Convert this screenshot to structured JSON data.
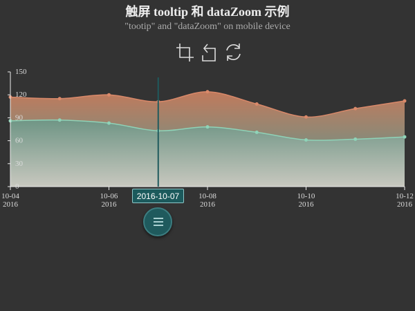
{
  "chart_data": {
    "type": "area",
    "title": "触屏 tooltip 和 dataZoom 示例",
    "subtitle": "\"tootip\" and \"dataZoom\" on mobile device",
    "x_ticks": [
      {
        "date": "2016-10-04",
        "label": "10-04",
        "year": "2016"
      },
      {
        "date": "2016-10-06",
        "label": "10-06",
        "year": "2016"
      },
      {
        "date": "2016-10-08",
        "label": "10-08",
        "year": "2016"
      },
      {
        "date": "2016-10-10",
        "label": "10-10",
        "year": "2016"
      },
      {
        "date": "2016-10-12",
        "label": "10-12",
        "year": "2016"
      }
    ],
    "xlim": [
      "2016-10-04",
      "2016-10-12"
    ],
    "ylim": [
      0,
      150
    ],
    "y_ticks": [
      0,
      30,
      60,
      90,
      120,
      150
    ],
    "stacked": true,
    "series": [
      {
        "color": "#8fd3b8",
        "data": [
          [
            "2016-10-04",
            86
          ],
          [
            "2016-10-05",
            87
          ],
          [
            "2016-10-06",
            83
          ],
          [
            "2016-10-07",
            73
          ],
          [
            "2016-10-08",
            78
          ],
          [
            "2016-10-09",
            71
          ],
          [
            "2016-10-10",
            61
          ],
          [
            "2016-10-11",
            62
          ],
          [
            "2016-10-12",
            65
          ]
        ]
      },
      {
        "color": "#d9896a",
        "data": [
          [
            "2016-10-04",
            31
          ],
          [
            "2016-10-05",
            28
          ],
          [
            "2016-10-06",
            37
          ],
          [
            "2016-10-07",
            38
          ],
          [
            "2016-10-08",
            46
          ],
          [
            "2016-10-09",
            37
          ],
          [
            "2016-10-10",
            30
          ],
          [
            "2016-10-11",
            40
          ],
          [
            "2016-10-12",
            47
          ]
        ]
      }
    ],
    "tooltip": {
      "date": "2016-10-07",
      "label": "2016-10-07"
    }
  },
  "colors": {
    "background": "#333333",
    "axis": "#eeeeee",
    "pointer_line": "#1f5a5d",
    "top_area_gradient": [
      "#c07a5c",
      "#8a8a78"
    ],
    "bottom_area_gradient": [
      "#6f9585",
      "#c8c8bf"
    ]
  },
  "toolbox": {
    "icons": [
      "crop-zoom-icon",
      "undo-zoom-icon",
      "restore-icon"
    ]
  }
}
